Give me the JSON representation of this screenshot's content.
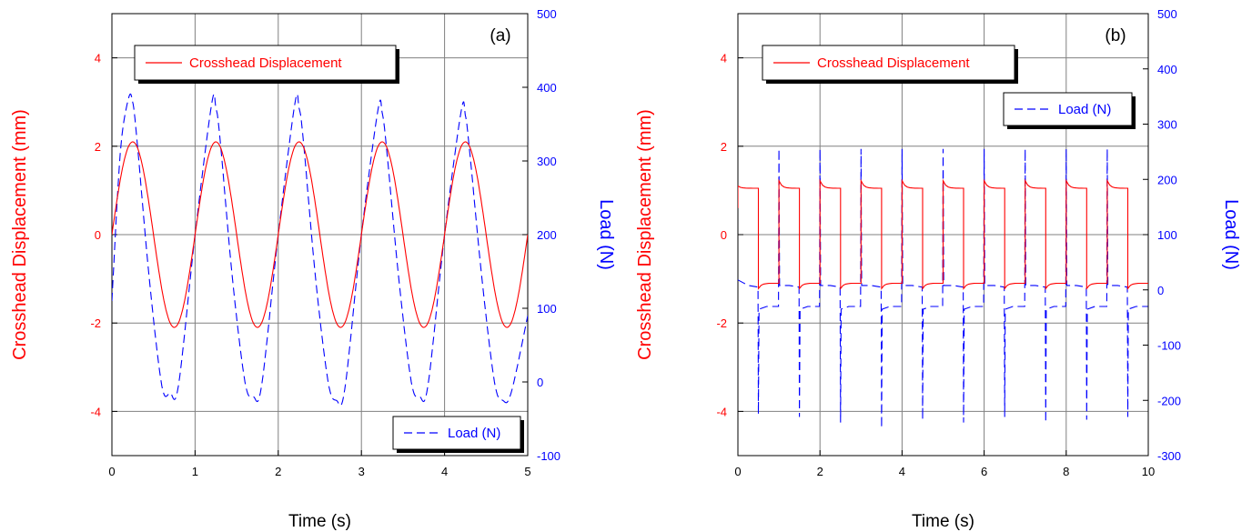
{
  "colors": {
    "displacement": "#ff0000",
    "load": "#0000ff",
    "frame": "#000000",
    "grid": "#808080"
  },
  "chart_data": [
    {
      "type": "line",
      "panel_label": "(a)",
      "xlabel": "Time (s)",
      "ylabel_left": "Crosshead Displacement (mm)",
      "ylabel_right": "Load (N)",
      "xlim": [
        0,
        5
      ],
      "ylim_left": [
        -5,
        5
      ],
      "ylim_right": [
        -100,
        500
      ],
      "x_ticks": [
        "0",
        "1",
        "2",
        "3",
        "4",
        "5"
      ],
      "y_ticks_left": [
        "4",
        "2",
        "0",
        "-2",
        "-4"
      ],
      "y_ticks_right": [
        "500",
        "400",
        "300",
        "200",
        "100",
        "0",
        "-100"
      ],
      "grid": true,
      "series": [
        {
          "name": "Crosshead Displacement",
          "axis": "left",
          "style": "solid",
          "color": "#ff0000",
          "description": "sine wave, amplitude 2.1 mm, frequency 1 Hz",
          "x": [
            0,
            0.25,
            0.5,
            0.75,
            1.0,
            1.25,
            1.5,
            1.75,
            2.0,
            2.25,
            2.5,
            2.75,
            3.0,
            3.25,
            3.5,
            3.75,
            4.0,
            4.25,
            4.5,
            4.75,
            5.0
          ],
          "y": [
            0,
            2.1,
            0,
            -2.1,
            0,
            2.1,
            0,
            -2.1,
            0,
            2.1,
            0,
            -2.1,
            0,
            2.1,
            0,
            -2.1,
            0,
            2.1,
            0,
            -2.1,
            0
          ]
        },
        {
          "name": "Load (N)",
          "axis": "right",
          "style": "dashed",
          "color": "#0000ff",
          "x": [
            0,
            0.1,
            0.2,
            0.25,
            0.3,
            0.45,
            0.6,
            0.7,
            0.8,
            1.0,
            1.2,
            1.25,
            1.3,
            1.45,
            1.6,
            1.7,
            1.8,
            2.0,
            2.2,
            2.25,
            2.3,
            2.45,
            2.6,
            2.7,
            2.8,
            3.0,
            3.2,
            3.25,
            3.3,
            3.45,
            3.6,
            3.7,
            3.8,
            4.0,
            4.2,
            4.25,
            4.3,
            4.45,
            4.6,
            4.7,
            4.8,
            5.0
          ],
          "y": [
            110,
            310,
            385,
            380,
            330,
            140,
            -5,
            -15,
            -5,
            200,
            378,
            372,
            330,
            140,
            0,
            -20,
            -5,
            200,
            378,
            372,
            330,
            140,
            0,
            -25,
            -10,
            200,
            370,
            365,
            320,
            140,
            0,
            -20,
            -5,
            200,
            368,
            362,
            315,
            140,
            0,
            -25,
            -15,
            90
          ]
        }
      ],
      "legend": [
        "Crosshead Displacement",
        "Load (N)"
      ]
    },
    {
      "type": "line",
      "panel_label": "(b)",
      "xlabel": "Time (s)",
      "ylabel_left": "Crosshead Displacement (mm)",
      "ylabel_right": "Load (N)",
      "xlim": [
        0,
        10
      ],
      "ylim_left": [
        -5,
        5
      ],
      "ylim_right": [
        -300,
        500
      ],
      "x_ticks": [
        "0",
        "2",
        "4",
        "6",
        "8",
        "10"
      ],
      "y_ticks_left": [
        "4",
        "2",
        "0",
        "-2",
        "-4"
      ],
      "y_ticks_right": [
        "500",
        "400",
        "300",
        "200",
        "100",
        "0",
        "-100",
        "-200",
        "-300"
      ],
      "grid": true,
      "series": [
        {
          "name": "Crosshead Displacement",
          "axis": "left",
          "style": "solid",
          "color": "#ff0000",
          "description": "square wave alternating between about +1.05 and -1.1 mm, half-period 0.5 s, overshoot to +1.2 / -1.2 at each step",
          "high": 1.05,
          "low": -1.1,
          "period": 1.0
        },
        {
          "name": "Load (N)",
          "axis": "right",
          "style": "dashed",
          "color": "#0000ff",
          "description": "baseline near 0 to -35 N with spikes of about +255 N at rising edges and -220 to -250 N at falling edges",
          "spike_up": 255,
          "spike_down": [
            -225,
            -230,
            -240,
            -250,
            -235,
            -240,
            -230,
            -240,
            -235,
            -230
          ]
        }
      ],
      "legend": [
        "Crosshead Displacement",
        "Load (N)"
      ]
    }
  ]
}
